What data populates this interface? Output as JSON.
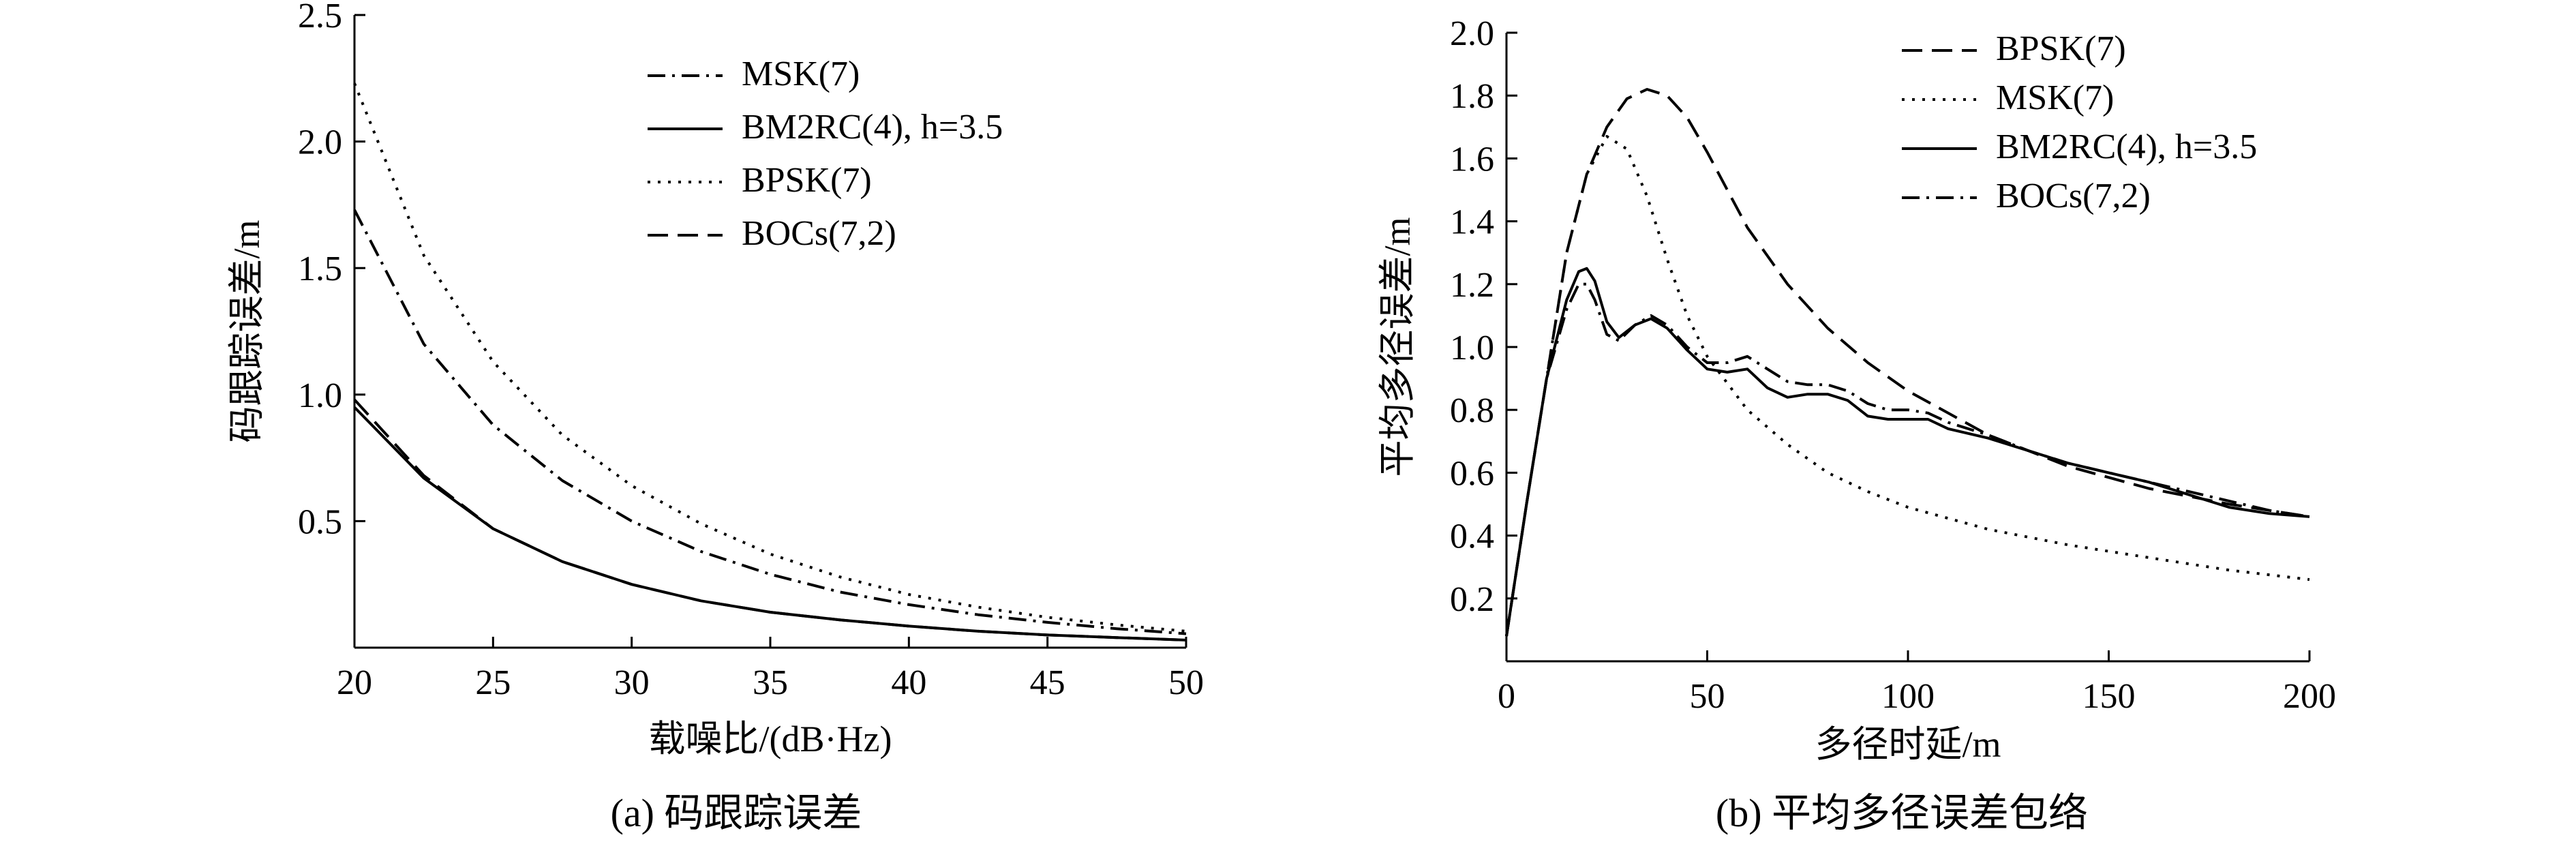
{
  "colors": {
    "line": "#000000",
    "background": "#ffffff"
  },
  "chart_data": [
    {
      "type": "line",
      "caption": "(a) 码跟踪误差",
      "xlabel": "载噪比/(dB·Hz)",
      "ylabel": "码跟踪误差/m",
      "xlim": [
        20,
        50
      ],
      "ylim": [
        0,
        2.5
      ],
      "x_ticks": [
        20,
        25,
        30,
        35,
        40,
        45,
        50
      ],
      "y_ticks": [
        0.5,
        1.0,
        1.5,
        2.0,
        2.5
      ],
      "x_tick_labels": [
        "20",
        "25",
        "30",
        "35",
        "40",
        "45",
        "50"
      ],
      "y_tick_labels": [
        "0.5",
        "1.0",
        "1.5",
        "2.0",
        "2.5"
      ],
      "grid": false,
      "legend_position": "top-right",
      "x": [
        20,
        22.5,
        25,
        27.5,
        30,
        32.5,
        35,
        37.5,
        40,
        42.5,
        45,
        47.5,
        50
      ],
      "series": [
        {
          "name": "MSK(7)",
          "style": "dashdot",
          "values": [
            1.73,
            1.2,
            0.88,
            0.66,
            0.5,
            0.38,
            0.29,
            0.22,
            0.17,
            0.13,
            0.1,
            0.075,
            0.055
          ]
        },
        {
          "name": "BM2RC(4), h=3.5",
          "style": "solid",
          "values": [
            0.95,
            0.67,
            0.47,
            0.34,
            0.25,
            0.185,
            0.14,
            0.11,
            0.085,
            0.065,
            0.05,
            0.04,
            0.03
          ]
        },
        {
          "name": "BPSK(7)",
          "style": "dotted",
          "values": [
            2.23,
            1.55,
            1.13,
            0.84,
            0.64,
            0.49,
            0.37,
            0.28,
            0.21,
            0.16,
            0.12,
            0.09,
            0.065
          ]
        },
        {
          "name": "BOCs(7,2)",
          "style": "dashed",
          "values": [
            0.98,
            0.68,
            0.47,
            0.34,
            0.25,
            0.185,
            0.14,
            0.11,
            0.085,
            0.065,
            0.05,
            0.04,
            0.03
          ]
        }
      ]
    },
    {
      "type": "line",
      "caption": "(b) 平均多径误差包络",
      "xlabel": "多径时延/m",
      "ylabel": "平均多径误差/m",
      "xlim": [
        0,
        200
      ],
      "ylim": [
        0,
        2.0
      ],
      "x_ticks": [
        0,
        50,
        100,
        150,
        200
      ],
      "y_ticks": [
        0.2,
        0.4,
        0.6,
        0.8,
        1.0,
        1.2,
        1.4,
        1.6,
        1.8,
        2.0
      ],
      "x_tick_labels": [
        "0",
        "50",
        "100",
        "150",
        "200"
      ],
      "y_tick_labels": [
        "0.2",
        "0.4",
        "0.6",
        "0.8",
        "1.0",
        "1.2",
        "1.4",
        "1.6",
        "1.8",
        "2.0"
      ],
      "grid": false,
      "legend_position": "top-right",
      "series": [
        {
          "name": "BPSK(7)",
          "style": "dashed",
          "x": [
            0,
            5,
            10,
            15,
            20,
            25,
            30,
            35,
            40,
            45,
            50,
            60,
            70,
            80,
            90,
            100,
            120,
            140,
            160,
            180,
            200
          ],
          "values": [
            0.08,
            0.5,
            0.9,
            1.3,
            1.55,
            1.7,
            1.79,
            1.82,
            1.8,
            1.73,
            1.62,
            1.38,
            1.2,
            1.06,
            0.95,
            0.86,
            0.72,
            0.62,
            0.55,
            0.5,
            0.46
          ]
        },
        {
          "name": "MSK(7)",
          "style": "dotted",
          "x": [
            0,
            5,
            10,
            15,
            20,
            25,
            30,
            35,
            40,
            45,
            50,
            60,
            70,
            80,
            90,
            100,
            120,
            140,
            160,
            180,
            200
          ],
          "values": [
            0.08,
            0.5,
            0.9,
            1.3,
            1.55,
            1.67,
            1.63,
            1.48,
            1.28,
            1.1,
            0.97,
            0.8,
            0.69,
            0.6,
            0.54,
            0.49,
            0.42,
            0.37,
            0.33,
            0.29,
            0.26
          ]
        },
        {
          "name": "BM2RC(4), h=3.5",
          "style": "solid",
          "x": [
            0,
            5,
            10,
            15,
            18,
            20,
            22,
            25,
            28,
            32,
            36,
            40,
            45,
            50,
            55,
            60,
            65,
            70,
            75,
            80,
            85,
            90,
            95,
            100,
            105,
            110,
            120,
            130,
            140,
            150,
            160,
            170,
            180,
            190,
            200
          ],
          "values": [
            0.08,
            0.5,
            0.9,
            1.15,
            1.24,
            1.25,
            1.21,
            1.08,
            1.03,
            1.07,
            1.09,
            1.06,
            0.99,
            0.93,
            0.92,
            0.93,
            0.87,
            0.84,
            0.85,
            0.85,
            0.83,
            0.78,
            0.77,
            0.77,
            0.77,
            0.74,
            0.71,
            0.67,
            0.63,
            0.6,
            0.57,
            0.53,
            0.49,
            0.47,
            0.46
          ]
        },
        {
          "name": "BOCs(7,2)",
          "style": "dashdot",
          "x": [
            0,
            5,
            10,
            15,
            18,
            20,
            22,
            25,
            28,
            32,
            36,
            40,
            45,
            50,
            55,
            60,
            65,
            70,
            75,
            80,
            85,
            90,
            95,
            100,
            105,
            110,
            120,
            130,
            140,
            150,
            160,
            170,
            180,
            190,
            200
          ],
          "values": [
            0.08,
            0.5,
            0.9,
            1.12,
            1.2,
            1.2,
            1.15,
            1.04,
            1.02,
            1.07,
            1.1,
            1.07,
            1.0,
            0.95,
            0.95,
            0.97,
            0.93,
            0.89,
            0.88,
            0.88,
            0.86,
            0.82,
            0.8,
            0.8,
            0.79,
            0.76,
            0.72,
            0.67,
            0.63,
            0.6,
            0.57,
            0.54,
            0.51,
            0.48,
            0.46
          ]
        }
      ]
    }
  ]
}
